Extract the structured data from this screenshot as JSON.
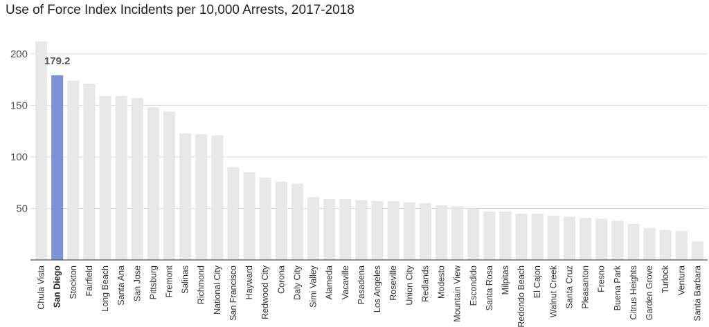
{
  "title": "Use of Force Index Incidents per 10,000 Arrests, 2017-2018",
  "colors": {
    "bar": "#e8e8e8",
    "highlight": "#7b93d2",
    "grid": "#d9d9d9",
    "axis": "#555555"
  },
  "chart_data": {
    "type": "bar",
    "title": "Use of Force Index Incidents per 10,000 Arrests, 2017-2018",
    "xlabel": "",
    "ylabel": "",
    "ylim": [
      0,
      212
    ],
    "yticks": [
      50,
      100,
      150,
      200
    ],
    "grid": true,
    "highlight": "San Diego",
    "categories": [
      "Chula Vista",
      "San Diego",
      "Stockton",
      "Fairfield",
      "Long Beach",
      "Santa Ana",
      "San Jose",
      "Pittsburg",
      "Fremont",
      "Salinas",
      "Richmond",
      "National City",
      "San Francisco",
      "Hayward",
      "Redwood City",
      "Corona",
      "Daly City",
      "Simi Valley",
      "Alameda",
      "Vacaville",
      "Pasadena",
      "Los Angeles",
      "Roseville",
      "Union City",
      "Redlands",
      "Modesto",
      "Mountain View",
      "Escondido",
      "Santa Rosa",
      "Milpitas",
      "Redondo Beach",
      "El Cajon",
      "Walnut Creek",
      "Santa Cruz",
      "Pleasanton",
      "Fresno",
      "Buena Park",
      "Citrus Heights",
      "Garden Grove",
      "Turlock",
      "Ventura",
      "Santa Barbara"
    ],
    "values": [
      212,
      179.2,
      174,
      171,
      159,
      159,
      157,
      148,
      144,
      123,
      122,
      121,
      90,
      85,
      80,
      76,
      74,
      61,
      59,
      59,
      58,
      57,
      57,
      56,
      55,
      53,
      52,
      50,
      47,
      47,
      45,
      45,
      43,
      42,
      41,
      40,
      38,
      35,
      31,
      29,
      28,
      18
    ],
    "data_labels": [
      {
        "category": "San Diego",
        "text": "179.2"
      }
    ]
  }
}
